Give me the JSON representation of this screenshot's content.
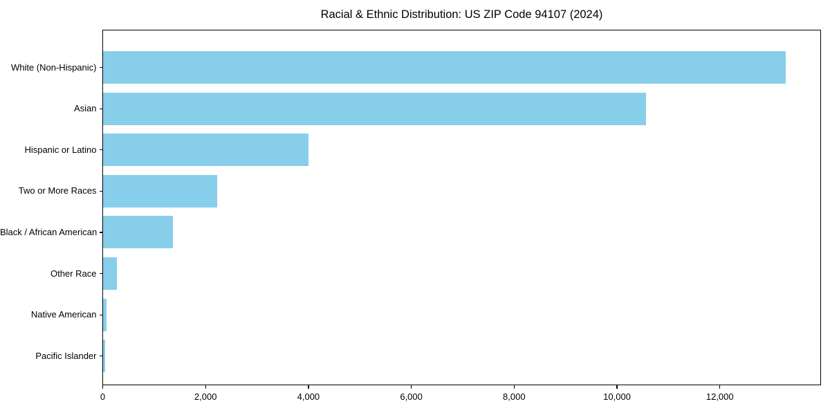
{
  "title": "Racial & Ethnic Distribution: US ZIP Code 94107 (2024)",
  "chart_data": {
    "type": "bar",
    "orientation": "horizontal",
    "title": "Racial & Ethnic Distribution: US ZIP Code 94107 (2024)",
    "categories": [
      "White (Non-Hispanic)",
      "Asian",
      "Hispanic or Latino",
      "Two or More Races",
      "Black / African American",
      "Other Race",
      "Native American",
      "Pacific Islander"
    ],
    "values": [
      13280,
      10570,
      4000,
      2220,
      1360,
      270,
      75,
      45
    ],
    "xlabel": "",
    "ylabel": "",
    "xlim": [
      0,
      13960
    ],
    "x_ticks": [
      0,
      2000,
      4000,
      6000,
      8000,
      10000,
      12000
    ],
    "x_tick_labels": [
      "0",
      "2,000",
      "4,000",
      "6,000",
      "8,000",
      "10,000",
      "12,000"
    ],
    "bar_color": "#87CEEB",
    "axis_color": "#000000",
    "grid": false,
    "legend": "none"
  }
}
